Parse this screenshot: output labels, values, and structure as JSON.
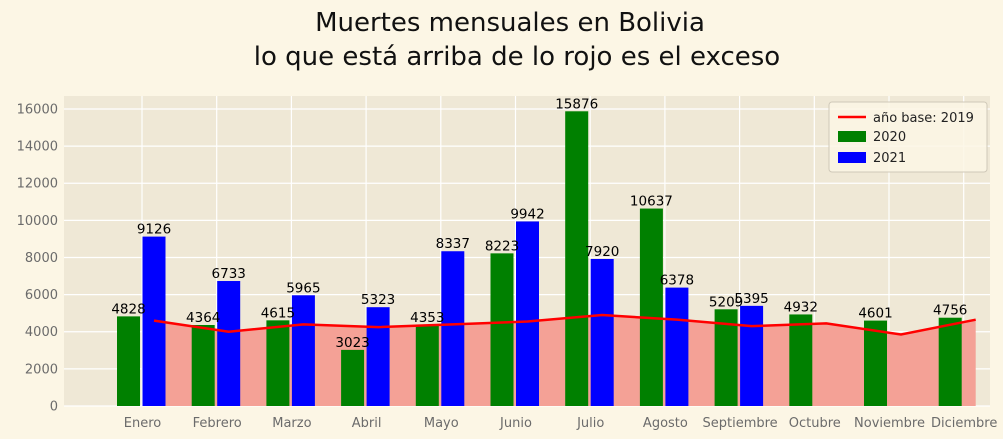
{
  "chart_data": {
    "type": "bar",
    "title_lines": [
      "Muertes mensuales en Bolivia",
      "lo que está arriba de lo rojo es el exceso"
    ],
    "categories": [
      "Enero",
      "Febrero",
      "Marzo",
      "Abril",
      "Mayo",
      "Junio",
      "Julio",
      "Agosto",
      "Septiembre",
      "Octubre",
      "Noviembre",
      "Diciembre"
    ],
    "series": [
      {
        "name": "año base: 2019",
        "kind": "line",
        "color": "#ff0000",
        "values": [
          4600,
          4000,
          4400,
          4250,
          4400,
          4550,
          4900,
          4650,
          4300,
          4450,
          3850,
          4650
        ]
      },
      {
        "name": "2020",
        "kind": "bar",
        "color": "#008000",
        "values": [
          4828,
          4364,
          4615,
          3023,
          4353,
          8223,
          15876,
          10637,
          5209,
          4932,
          4601,
          4756
        ]
      },
      {
        "name": "2021",
        "kind": "bar",
        "color": "#0000ff",
        "values": [
          9126,
          6733,
          5965,
          5323,
          8337,
          9942,
          7920,
          6378,
          5395,
          null,
          null,
          null
        ]
      }
    ],
    "baseline_fill_color": "#f4a196",
    "ylim": [
      0,
      16700
    ],
    "yticks": [
      0,
      2000,
      4000,
      6000,
      8000,
      10000,
      12000,
      14000,
      16000
    ],
    "grid": true,
    "legend_position": "top-right",
    "plot_background": "#efe8d6"
  }
}
